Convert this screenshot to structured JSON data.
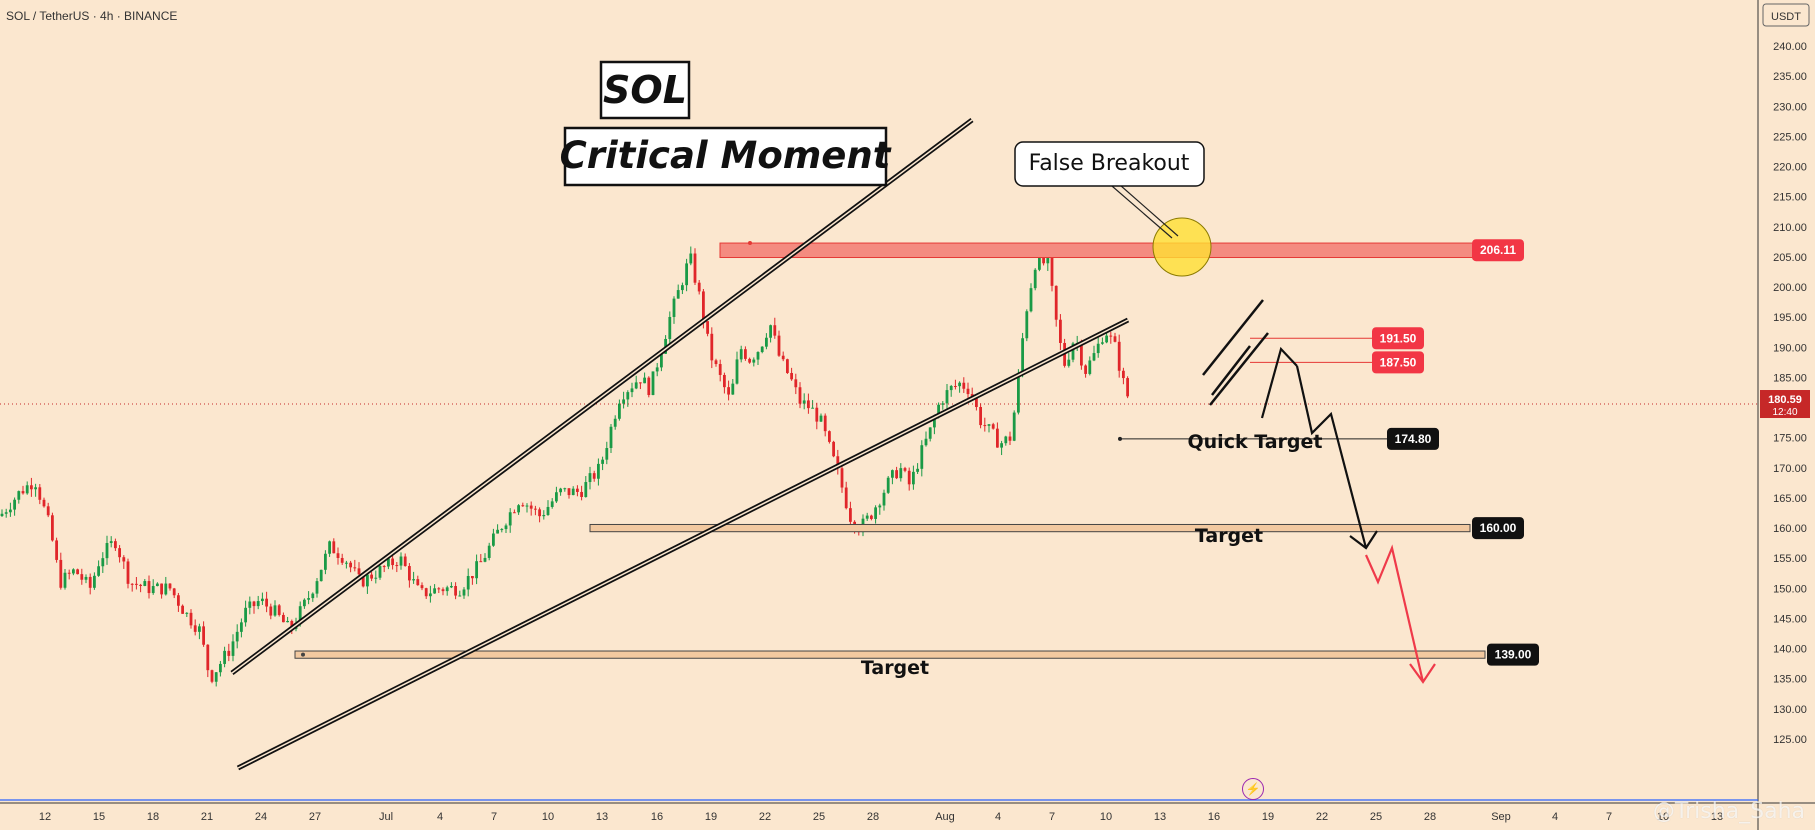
{
  "header": {
    "symbol_line": "SOL / TetherUS · 4h · BINANCE"
  },
  "currency": "USDT",
  "watermark": "@Trisha_Saha",
  "titles": {
    "main": "SOL",
    "sub": "Critical Moment"
  },
  "callout": "False Breakout",
  "annotations": {
    "quick_target": "Quick Target",
    "target_mid": "Target",
    "target_low": "Target"
  },
  "current_price": {
    "value": "180.59",
    "countdown": "12:40"
  },
  "colors": {
    "background": "#fbe7cf",
    "up": "#1a9a46",
    "down": "#e0262a",
    "resistance_zone": "#f48b80",
    "support_zone": "#f2c9a0",
    "label_red": "#f23645",
    "label_black": "#111111"
  },
  "chart_data": {
    "type": "candlestick",
    "ylim": [
      122,
      243
    ],
    "y_ticks": [
      125,
      130,
      135,
      140,
      145,
      150,
      155,
      160,
      165,
      170,
      175,
      180,
      185,
      190,
      195,
      200,
      205,
      210,
      215,
      220,
      225,
      230,
      235,
      240
    ],
    "x_ticks": [
      "12",
      "15",
      "18",
      "21",
      "24",
      "27",
      "Jul",
      "4",
      "7",
      "10",
      "13",
      "16",
      "19",
      "22",
      "25",
      "28",
      "Aug",
      "4",
      "7",
      "10",
      "13",
      "16",
      "19",
      "22",
      "25",
      "28",
      "Sep",
      "4",
      "7",
      "10",
      "13"
    ],
    "price_path": [
      [
        0,
        162
      ],
      [
        20,
        166
      ],
      [
        35,
        168
      ],
      [
        50,
        160
      ],
      [
        60,
        151
      ],
      [
        75,
        153
      ],
      [
        90,
        150
      ],
      [
        100,
        155
      ],
      [
        115,
        158
      ],
      [
        130,
        151
      ],
      [
        150,
        150
      ],
      [
        170,
        150
      ],
      [
        185,
        146
      ],
      [
        200,
        143
      ],
      [
        210,
        135
      ],
      [
        230,
        140
      ],
      [
        245,
        146
      ],
      [
        260,
        148
      ],
      [
        275,
        146
      ],
      [
        290,
        143
      ],
      [
        310,
        149
      ],
      [
        330,
        157
      ],
      [
        345,
        155
      ],
      [
        360,
        151
      ],
      [
        380,
        153
      ],
      [
        400,
        155
      ],
      [
        420,
        149
      ],
      [
        440,
        150
      ],
      [
        460,
        150
      ],
      [
        480,
        154
      ],
      [
        500,
        160
      ],
      [
        520,
        165
      ],
      [
        540,
        162
      ],
      [
        560,
        166
      ],
      [
        580,
        166
      ],
      [
        600,
        170
      ],
      [
        620,
        182
      ],
      [
        640,
        185
      ],
      [
        650,
        183
      ],
      [
        670,
        195
      ],
      [
        680,
        200
      ],
      [
        690,
        205
      ],
      [
        700,
        198
      ],
      [
        710,
        189
      ],
      [
        720,
        185
      ],
      [
        730,
        181
      ],
      [
        740,
        190
      ],
      [
        750,
        188
      ],
      [
        760,
        190
      ],
      [
        770,
        194
      ],
      [
        780,
        188
      ],
      [
        790,
        185
      ],
      [
        800,
        181
      ],
      [
        810,
        180
      ],
      [
        820,
        178
      ],
      [
        830,
        173
      ],
      [
        840,
        168
      ],
      [
        850,
        162
      ],
      [
        860,
        160
      ],
      [
        870,
        162
      ],
      [
        880,
        165
      ],
      [
        890,
        168
      ],
      [
        900,
        170
      ],
      [
        910,
        167
      ],
      [
        920,
        172
      ],
      [
        930,
        176
      ],
      [
        940,
        181
      ],
      [
        950,
        183
      ],
      [
        960,
        184
      ],
      [
        970,
        183
      ],
      [
        980,
        178
      ],
      [
        990,
        176
      ],
      [
        1000,
        174
      ],
      [
        1010,
        175
      ],
      [
        1015,
        180
      ],
      [
        1025,
        195
      ],
      [
        1035,
        204
      ],
      [
        1040,
        204
      ],
      [
        1048,
        204
      ],
      [
        1058,
        192
      ],
      [
        1065,
        187
      ],
      [
        1075,
        192
      ],
      [
        1085,
        186
      ],
      [
        1095,
        189
      ],
      [
        1105,
        193
      ],
      [
        1115,
        190
      ],
      [
        1125,
        183
      ],
      [
        1130,
        181
      ]
    ],
    "levels": [
      {
        "price": 206.11,
        "label": "206.11",
        "kind": "resistance"
      },
      {
        "price": 191.5,
        "label": "191.50",
        "kind": "entry"
      },
      {
        "price": 187.5,
        "label": "187.50",
        "kind": "entry"
      },
      {
        "price": 174.8,
        "label": "174.80",
        "kind": "target"
      },
      {
        "price": 160.0,
        "label": "160.00",
        "kind": "target"
      },
      {
        "price": 139.0,
        "label": "139.00",
        "kind": "target"
      }
    ]
  }
}
